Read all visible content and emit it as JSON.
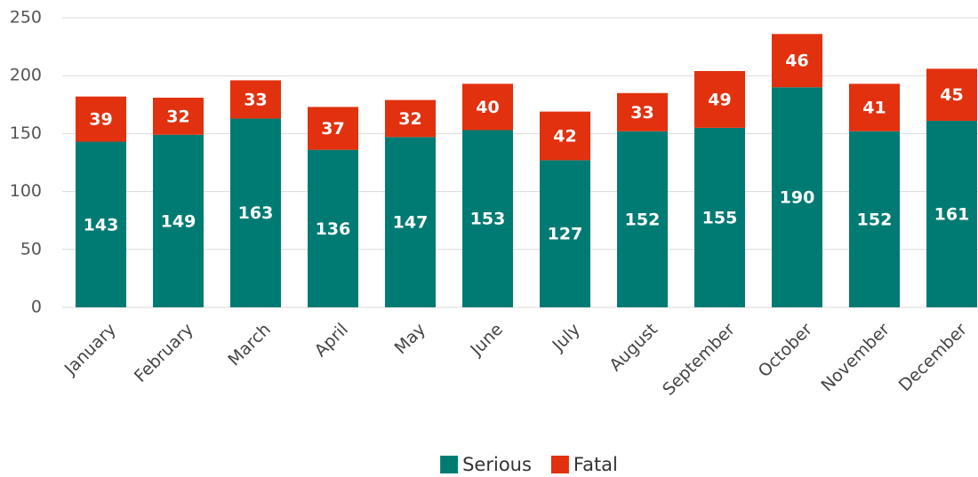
{
  "chart_data": {
    "type": "stacked_bar",
    "categories": [
      "January",
      "February",
      "March",
      "April",
      "May",
      "June",
      "July",
      "August",
      "September",
      "October",
      "November",
      "December"
    ],
    "series": [
      {
        "name": "Serious",
        "color": "#007b73",
        "values": [
          143,
          149,
          163,
          136,
          147,
          153,
          127,
          152,
          155,
          190,
          152,
          161
        ]
      },
      {
        "name": "Fatal",
        "color": "#e2310e",
        "values": [
          39,
          32,
          33,
          37,
          32,
          40,
          42,
          33,
          49,
          46,
          41,
          45
        ]
      }
    ],
    "ylim": [
      0,
      250
    ],
    "yticks": [
      0,
      50,
      100,
      150,
      200,
      250
    ],
    "grid": true,
    "legend": "bottom"
  }
}
